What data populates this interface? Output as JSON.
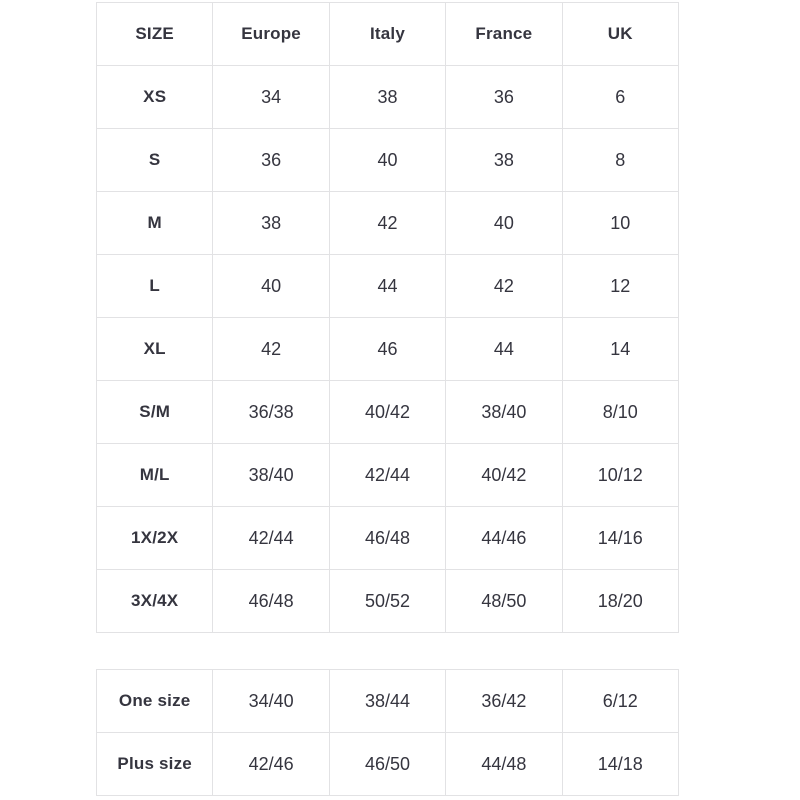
{
  "size_chart": {
    "headers": [
      "SIZE",
      "Europe",
      "Italy",
      "France",
      "UK"
    ],
    "rows": [
      {
        "size": "XS",
        "values": [
          "34",
          "38",
          "36",
          "6"
        ]
      },
      {
        "size": "S",
        "values": [
          "36",
          "40",
          "38",
          "8"
        ]
      },
      {
        "size": "M",
        "values": [
          "38",
          "42",
          "40",
          "10"
        ]
      },
      {
        "size": "L",
        "values": [
          "40",
          "44",
          "42",
          "12"
        ]
      },
      {
        "size": "XL",
        "values": [
          "42",
          "46",
          "44",
          "14"
        ]
      },
      {
        "size": "S/M",
        "values": [
          "36/38",
          "40/42",
          "38/40",
          "8/10"
        ]
      },
      {
        "size": "M/L",
        "values": [
          "38/40",
          "42/44",
          "40/42",
          "10/12"
        ]
      },
      {
        "size": "1X/2X",
        "values": [
          "42/44",
          "46/48",
          "44/46",
          "14/16"
        ]
      },
      {
        "size": "3X/4X",
        "values": [
          "46/48",
          "50/52",
          "48/50",
          "18/20"
        ]
      }
    ]
  },
  "special_sizes": {
    "rows": [
      {
        "size": "One size",
        "values": [
          "34/40",
          "38/44",
          "36/42",
          "6/12"
        ]
      },
      {
        "size": "Plus size",
        "values": [
          "42/46",
          "46/50",
          "44/48",
          "14/18"
        ]
      }
    ]
  },
  "colors": {
    "background": "#ffffff",
    "text": "#35353f",
    "border": "#e2e2e4"
  }
}
